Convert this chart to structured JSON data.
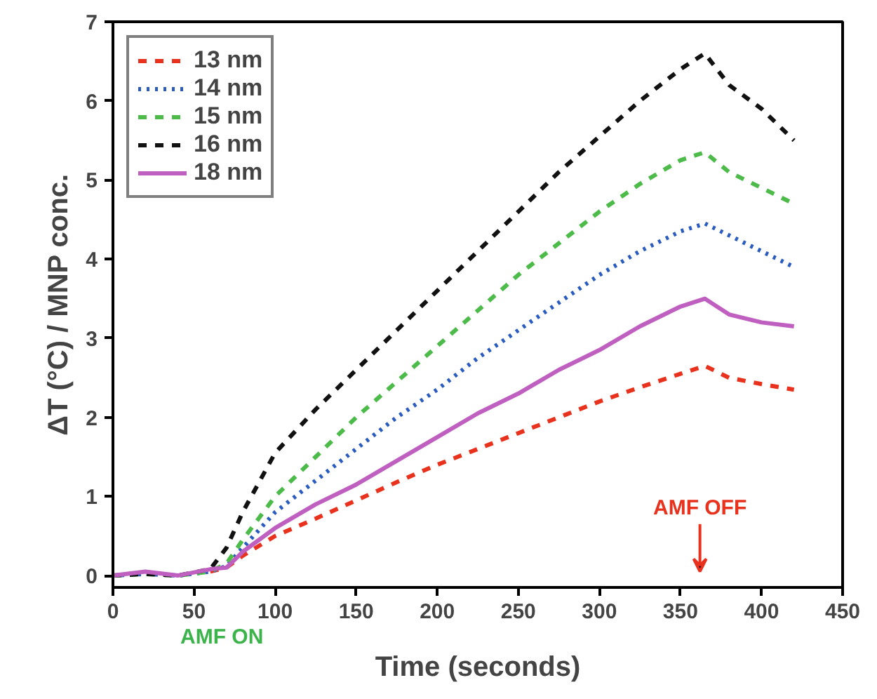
{
  "chart_data": {
    "type": "line",
    "xlabel": "Time (seconds)",
    "ylabel": "ΔT (°C) / MNP conc.",
    "x": [
      0,
      20,
      40,
      60,
      70,
      80,
      100,
      125,
      150,
      175,
      200,
      225,
      250,
      275,
      300,
      325,
      350,
      365,
      380,
      400,
      420
    ],
    "series": [
      {
        "name": "13 nm",
        "color": "#e8321e",
        "line_style": "dashed",
        "values": [
          null,
          null,
          null,
          0.05,
          0.1,
          0.25,
          0.5,
          0.72,
          0.95,
          1.18,
          1.4,
          1.6,
          1.8,
          2.0,
          2.2,
          2.38,
          2.55,
          2.65,
          2.5,
          2.42,
          2.35
        ]
      },
      {
        "name": "14 nm",
        "color": "#2a5bbf",
        "line_style": "dotted",
        "values": [
          0,
          0.02,
          0,
          0.05,
          0.12,
          0.35,
          0.8,
          1.2,
          1.6,
          2.0,
          2.35,
          2.75,
          3.1,
          3.45,
          3.8,
          4.1,
          4.35,
          4.45,
          4.3,
          4.1,
          3.9
        ]
      },
      {
        "name": "15 nm",
        "color": "#4cbb4a",
        "line_style": "dashed",
        "values": [
          0,
          0.02,
          0,
          0.05,
          0.15,
          0.45,
          1.0,
          1.5,
          2.0,
          2.45,
          2.9,
          3.35,
          3.8,
          4.2,
          4.6,
          4.95,
          5.25,
          5.35,
          5.1,
          4.9,
          4.7
        ]
      },
      {
        "name": "16 nm",
        "color": "#111111",
        "line_style": "dashed",
        "values": [
          0,
          0.02,
          0,
          0.08,
          0.35,
          0.8,
          1.55,
          2.1,
          2.6,
          3.1,
          3.6,
          4.1,
          4.6,
          5.1,
          5.55,
          6.0,
          6.4,
          6.6,
          6.2,
          5.9,
          5.5
        ]
      },
      {
        "name": "18 nm",
        "color": "#bf5fbf",
        "line_style": "solid",
        "values": [
          0,
          0.05,
          0,
          0.08,
          0.1,
          0.3,
          0.6,
          0.9,
          1.15,
          1.45,
          1.75,
          2.05,
          2.3,
          2.6,
          2.85,
          3.15,
          3.4,
          3.5,
          3.3,
          3.2,
          3.15
        ]
      }
    ],
    "xlim": [
      0,
      450
    ],
    "xticks": [
      0,
      50,
      100,
      150,
      200,
      250,
      300,
      350,
      400,
      450
    ],
    "ylim": [
      -0.15,
      7
    ],
    "yticks": [
      0,
      1,
      2,
      3,
      4,
      5,
      6,
      7
    ],
    "annotations": [
      "AMF ON",
      "AMF OFF"
    ],
    "legend": "top left",
    "grid": false,
    "marker": "none"
  }
}
